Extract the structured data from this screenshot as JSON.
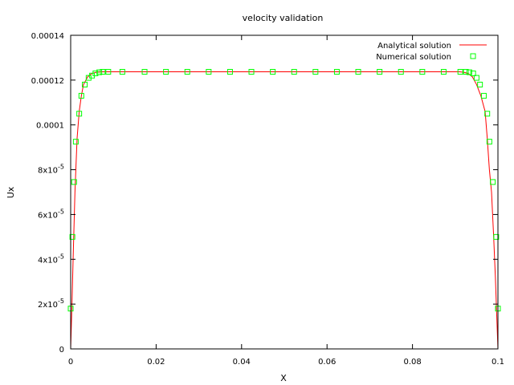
{
  "chart_data": {
    "type": "line",
    "title": "velocity validation",
    "xlabel": "X",
    "ylabel": "Ux",
    "xlim": [
      0,
      0.1
    ],
    "ylim": [
      0,
      0.00014
    ],
    "grid": false,
    "legend_position": "top-right",
    "x_ticks": [
      {
        "value": 0,
        "label": "0"
      },
      {
        "value": 0.02,
        "label": "0.02"
      },
      {
        "value": 0.04,
        "label": "0.04"
      },
      {
        "value": 0.06,
        "label": "0.06"
      },
      {
        "value": 0.08,
        "label": "0.08"
      },
      {
        "value": 0.1,
        "label": "0.1"
      }
    ],
    "y_ticks": [
      {
        "value": 0,
        "mantissa": "0",
        "exp": ""
      },
      {
        "value": 2e-05,
        "mantissa": "2x10",
        "exp": "-5"
      },
      {
        "value": 4e-05,
        "mantissa": "4x10",
        "exp": "-5"
      },
      {
        "value": 6e-05,
        "mantissa": "6x10",
        "exp": "-5"
      },
      {
        "value": 8e-05,
        "mantissa": "8x10",
        "exp": "-5"
      },
      {
        "value": 0.0001,
        "mantissa": "0.0001",
        "exp": ""
      },
      {
        "value": 0.00012,
        "mantissa": "0.00012",
        "exp": ""
      },
      {
        "value": 0.00014,
        "mantissa": "0.00014",
        "exp": ""
      }
    ],
    "series": [
      {
        "name": "Analytical solution",
        "style": "line",
        "color": "#ff0000",
        "x": [
          0,
          0.0003,
          0.0006,
          0.001,
          0.0015,
          0.002,
          0.0025,
          0.003,
          0.004,
          0.005,
          0.006,
          0.007,
          0.008,
          0.009,
          0.01,
          0.02,
          0.03,
          0.04,
          0.05,
          0.06,
          0.07,
          0.08,
          0.09,
          0.091,
          0.092,
          0.093,
          0.094,
          0.095,
          0.096,
          0.097,
          0.0975,
          0.098,
          0.0985,
          0.099,
          0.0994,
          0.0997,
          0.1
        ],
        "y": [
          0,
          2e-05,
          4.2e-05,
          7e-05,
          9.4e-05,
          0.000106,
          0.000113,
          0.000118,
          0.0001215,
          0.000123,
          0.0001235,
          0.0001237,
          0.0001237,
          0.0001237,
          0.0001237,
          0.0001237,
          0.0001237,
          0.0001237,
          0.0001237,
          0.0001237,
          0.0001237,
          0.0001237,
          0.0001237,
          0.0001237,
          0.0001235,
          0.000123,
          0.0001215,
          0.000118,
          0.000113,
          0.000106,
          9.4e-05,
          8e-05,
          7e-05,
          5e-05,
          3.2e-05,
          1.6e-05,
          0
        ]
      },
      {
        "name": "Numerical solution",
        "style": "markers",
        "color": "#00ff00",
        "x": [
          0,
          0.0004,
          0.0008,
          0.0012,
          0.002,
          0.0025,
          0.0033,
          0.0042,
          0.005,
          0.0058,
          0.0067,
          0.0075,
          0.0088,
          0.0121,
          0.0173,
          0.0223,
          0.0273,
          0.0323,
          0.0373,
          0.0423,
          0.0473,
          0.0523,
          0.0573,
          0.0623,
          0.0673,
          0.0723,
          0.0773,
          0.0823,
          0.0873,
          0.0912,
          0.0925,
          0.0933,
          0.0942,
          0.095,
          0.0958,
          0.0967,
          0.0975,
          0.098,
          0.0988,
          0.0996,
          0.1
        ],
        "y": [
          1.8e-05,
          5e-05,
          7.45e-05,
          9.25e-05,
          0.000105,
          0.000113,
          0.000118,
          0.000121,
          0.000122,
          0.000123,
          0.0001235,
          0.0001237,
          0.0001237,
          0.0001237,
          0.0001237,
          0.0001237,
          0.0001237,
          0.0001237,
          0.0001237,
          0.0001237,
          0.0001237,
          0.0001237,
          0.0001237,
          0.0001237,
          0.0001237,
          0.0001237,
          0.0001237,
          0.0001237,
          0.0001237,
          0.0001237,
          0.0001237,
          0.0001235,
          0.000123,
          0.000121,
          0.000118,
          0.000113,
          0.000105,
          9.25e-05,
          7.45e-05,
          5e-05,
          1.8e-05
        ]
      }
    ]
  }
}
